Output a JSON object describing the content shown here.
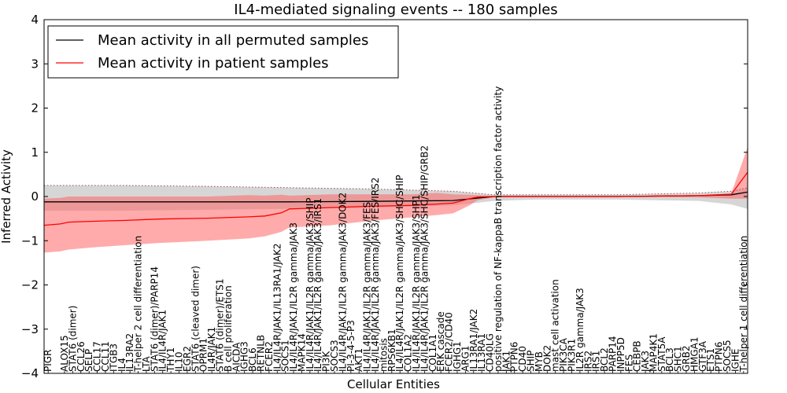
{
  "chart_data": {
    "type": "line",
    "title": "IL4-mediated signaling events -- 180 samples",
    "xlabel": "Cellular Entities",
    "ylabel": "Inferred Activity",
    "ylim": [
      -4,
      4
    ],
    "yticks": [
      -4,
      -3,
      -2,
      -1,
      0,
      1,
      2,
      3,
      4
    ],
    "legend_location": "upper-left",
    "colors": {
      "permuted_line": "#000000",
      "permuted_band": "#c8c8c8",
      "patient_line": "#ff0000",
      "patient_band": "#ff6666"
    },
    "labeled_categories": [
      {
        "index": 0,
        "label": "PIGR"
      },
      {
        "index": 2,
        "label": "ALOX15"
      },
      {
        "index": 3,
        "label": "STAT6 (dimer)"
      },
      {
        "index": 4,
        "label": "CCL26"
      },
      {
        "index": 5,
        "label": "SELP"
      },
      {
        "index": 6,
        "label": "CCL17"
      },
      {
        "index": 7,
        "label": "CCL11"
      },
      {
        "index": 8,
        "label": "ITGB3"
      },
      {
        "index": 9,
        "label": "IL4"
      },
      {
        "index": 10,
        "label": "IL13RA2"
      },
      {
        "index": 11,
        "label": "T-helper 2 cell differentiation"
      },
      {
        "index": 12,
        "label": "LTA"
      },
      {
        "index": 13,
        "label": "STAT6 (dimer)/PARP14"
      },
      {
        "index": 14,
        "label": "IL4/IL4R/JAK1"
      },
      {
        "index": 15,
        "label": "THY1"
      },
      {
        "index": 16,
        "label": "IL10"
      },
      {
        "index": 17,
        "label": "EGR2"
      },
      {
        "index": 18,
        "label": "STAT6 (cleaved dimer)"
      },
      {
        "index": 19,
        "label": "OPRM1"
      },
      {
        "index": 20,
        "label": "IL4R/JAK1"
      },
      {
        "index": 21,
        "label": "STAT6 (dimer)/ETS1"
      },
      {
        "index": 22,
        "label": "B cell proliferation"
      },
      {
        "index": 23,
        "label": "AICDA"
      },
      {
        "index": 24,
        "label": "IGHG3"
      },
      {
        "index": 25,
        "label": "BCL6"
      },
      {
        "index": 26,
        "label": "RETNLB"
      },
      {
        "index": 27,
        "label": "FCER2"
      },
      {
        "index": 28,
        "label": "IL4/IL4R/JAK1/IL13RA1/JAK2"
      },
      {
        "index": 29,
        "label": "SOCS1"
      },
      {
        "index": 30,
        "label": "IL4/IL4R/JAK1/IL2R gamma/JAK3"
      },
      {
        "index": 31,
        "label": "MAPK14"
      },
      {
        "index": 32,
        "label": "IL4/IL4R/JAK1/IL2R gamma/JAK3/SHIP"
      },
      {
        "index": 33,
        "label": "IL4/IL4R/JAK1/IL2R gamma/JAK3/IRS1"
      },
      {
        "index": 34,
        "label": "PI3K"
      },
      {
        "index": 35,
        "label": "SOCS3"
      },
      {
        "index": 36,
        "label": "IL4/IL4R/JAK1/IL2R gamma/JAK3/DOK2"
      },
      {
        "index": 37,
        "label": "PI-3-4-5-P3"
      },
      {
        "index": 38,
        "label": "AKT1"
      },
      {
        "index": 39,
        "label": "IL4/IL4R/JAK1/IL2R gamma/JAK3/FES"
      },
      {
        "index": 40,
        "label": "IL4/IL4R/JAK1/IL2R gamma/JAK3/FES/IRS2"
      },
      {
        "index": 41,
        "label": "mitosis"
      },
      {
        "index": 42,
        "label": "RPS6KB1"
      },
      {
        "index": 43,
        "label": "IL4/IL4R/JAK1/IL2R gamma/JAK3/SHC/SHIP"
      },
      {
        "index": 44,
        "label": "COL1A2"
      },
      {
        "index": 45,
        "label": "IL4/IL4R/JAK1/IL2R gamma/JAK3/SHP1"
      },
      {
        "index": 46,
        "label": "IL4/IL4R/JAK1/IL2R gamma/JAK3/SHC/SHIP/GRB2"
      },
      {
        "index": 47,
        "label": "COL1A1"
      },
      {
        "index": 48,
        "label": "ERK cascade"
      },
      {
        "index": 49,
        "label": "FCER2/CD40"
      },
      {
        "index": 50,
        "label": "IGHG1"
      },
      {
        "index": 51,
        "label": "ARG1"
      },
      {
        "index": 52,
        "label": "IL13RA1/JAK2"
      },
      {
        "index": 53,
        "label": "IL13RA1"
      },
      {
        "index": 54,
        "label": "CD40LG"
      },
      {
        "index": 55,
        "label": "positive regulation of NF-kappaB transcription factor activity"
      },
      {
        "index": 56,
        "label": "JAK1"
      },
      {
        "index": 57,
        "label": "PTPN6"
      },
      {
        "index": 58,
        "label": "CD40"
      },
      {
        "index": 59,
        "label": "SHIP"
      },
      {
        "index": 60,
        "label": "MYB"
      },
      {
        "index": 61,
        "label": "DOK2"
      },
      {
        "index": 62,
        "label": "mast cell activation"
      },
      {
        "index": 63,
        "label": "PIK3CA"
      },
      {
        "index": 64,
        "label": "PIK3R1"
      },
      {
        "index": 65,
        "label": "IL2R gamma/JAK3"
      },
      {
        "index": 66,
        "label": "IRS2"
      },
      {
        "index": 67,
        "label": "IRS1"
      },
      {
        "index": 68,
        "label": "BCL2"
      },
      {
        "index": 69,
        "label": "PARP14"
      },
      {
        "index": 70,
        "label": "INPP5D"
      },
      {
        "index": 71,
        "label": "FES"
      },
      {
        "index": 72,
        "label": "CEBPB"
      },
      {
        "index": 73,
        "label": "JAK3"
      },
      {
        "index": 74,
        "label": "MAP4K1"
      },
      {
        "index": 75,
        "label": "STAT5A"
      },
      {
        "index": 76,
        "label": "BCL3"
      },
      {
        "index": 77,
        "label": "SHC1"
      },
      {
        "index": 78,
        "label": "GRB2"
      },
      {
        "index": 79,
        "label": "HMGA1"
      },
      {
        "index": 80,
        "label": "GTF3A"
      },
      {
        "index": 81,
        "label": "ETS1"
      },
      {
        "index": 82,
        "label": "PTPN6"
      },
      {
        "index": 83,
        "label": "SOCS5"
      },
      {
        "index": 84,
        "label": "IGHE"
      },
      {
        "index": 85,
        "label": "T-helper 1 cell differentiation"
      }
    ],
    "series": [
      {
        "name": "Mean activity in all permuted samples",
        "color": "#000000",
        "x": [
          0,
          10,
          20,
          30,
          40,
          50,
          55,
          60,
          70,
          80,
          84,
          86
        ],
        "values": [
          -0.12,
          -0.12,
          -0.12,
          -0.12,
          -0.11,
          -0.09,
          0.0,
          0.0,
          0.0,
          0.02,
          0.04,
          0.1
        ],
        "band_upper": [
          0.25,
          0.25,
          0.23,
          0.2,
          0.17,
          0.12,
          0.04,
          0.04,
          0.04,
          0.08,
          0.12,
          0.2
        ],
        "band_lower": [
          -0.32,
          -0.32,
          -0.3,
          -0.28,
          -0.25,
          -0.2,
          -0.1,
          -0.07,
          -0.07,
          -0.1,
          -0.18,
          -0.28
        ]
      },
      {
        "name": "Mean activity in patient samples",
        "color": "#ff0000",
        "x": [
          0,
          2,
          3,
          6,
          10,
          14,
          20,
          25,
          27,
          29,
          30,
          35,
          40,
          45,
          48,
          50,
          52,
          53,
          55,
          60,
          70,
          80,
          84,
          86
        ],
        "values": [
          -0.65,
          -0.62,
          -0.58,
          -0.56,
          -0.54,
          -0.51,
          -0.49,
          -0.46,
          -0.44,
          -0.37,
          -0.28,
          -0.25,
          -0.22,
          -0.2,
          -0.17,
          -0.15,
          -0.05,
          -0.01,
          0.0,
          0.0,
          0.0,
          0.02,
          0.05,
          0.55
        ],
        "band_upper": [
          -0.05,
          -0.03,
          0.0,
          0.0,
          0.0,
          0.0,
          0.0,
          0.03,
          0.02,
          0.04,
          0.02,
          0.05,
          0.05,
          0.05,
          0.08,
          0.05,
          0.04,
          0.03,
          0.01,
          0.01,
          0.01,
          0.03,
          0.07,
          1.12
        ],
        "band_lower": [
          -1.27,
          -1.24,
          -1.2,
          -1.15,
          -1.1,
          -1.05,
          -1.0,
          -0.95,
          -0.9,
          -0.8,
          -0.7,
          -0.65,
          -0.55,
          -0.47,
          -0.42,
          -0.38,
          -0.2,
          -0.08,
          -0.02,
          -0.01,
          -0.01,
          -0.02,
          -0.05,
          -0.05
        ]
      }
    ]
  }
}
